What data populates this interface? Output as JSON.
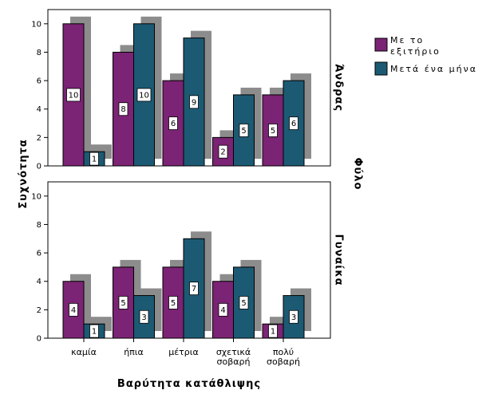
{
  "chart_data": {
    "type": "bar",
    "subtype": "grouped-paneled",
    "categories": [
      [
        "καμία"
      ],
      [
        "ήπια"
      ],
      [
        "μέτρια"
      ],
      [
        "σχετικά",
        "σοβαρή"
      ],
      [
        "πολύ",
        "σοβαρή"
      ]
    ],
    "series": [
      {
        "name": "Με το εξιτήριο",
        "name_lines": [
          "Με το",
          "εξιτήριο"
        ],
        "color": "#7b2374"
      },
      {
        "name": "Μετά ένα μήνα",
        "name_lines": [
          "Μετά ένα μήνα"
        ],
        "color": "#1c5a74"
      }
    ],
    "panels": [
      {
        "label": "Άνδρας",
        "values": [
          [
            10,
            8,
            6,
            2,
            5
          ],
          [
            1,
            10,
            9,
            5,
            6
          ]
        ]
      },
      {
        "label": "Γυναίκα",
        "values": [
          [
            4,
            5,
            5,
            4,
            1
          ],
          [
            1,
            3,
            7,
            5,
            3
          ]
        ]
      }
    ],
    "xlabel": "Βαρύτητα κατάθλιψης",
    "ylabel": "Συχνότητα",
    "panel_axis_label": "Φύλο",
    "ylim": [
      0,
      11
    ],
    "yticks": [
      0,
      2,
      4,
      6,
      8,
      10
    ],
    "data_labels": true,
    "shadow_color": "#8c8c8c",
    "grid": false,
    "legend_position": "top-right"
  }
}
